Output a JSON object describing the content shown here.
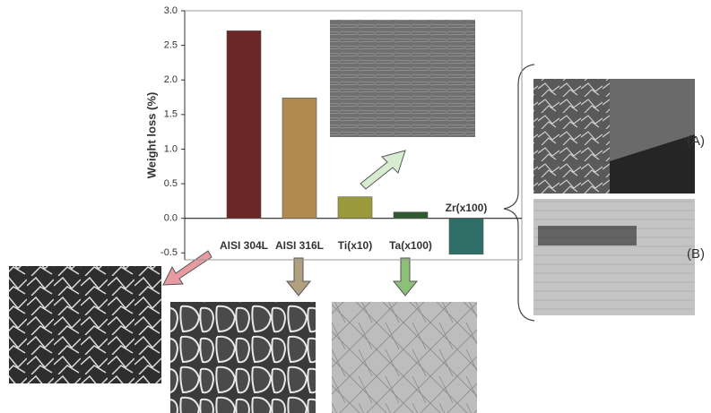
{
  "chart_data": {
    "type": "bar",
    "y_label": "Weight loss (%)",
    "categories": [
      "AISI 304L",
      "AISI 316L",
      "Ti(x10)",
      "Ta(x100)",
      "Zr(x100)"
    ],
    "values": [
      2.71,
      1.74,
      0.31,
      0.09,
      -0.52
    ],
    "colors": [
      "#6b2626",
      "#b08a4f",
      "#9a9a3c",
      "#2f5a2f",
      "#2e6e66"
    ],
    "ylim": [
      -0.6,
      3.0
    ],
    "yticks": [
      {
        "value": 3,
        "label": "3.0"
      },
      2.5,
      {
        "value": 2,
        "label": "2.0"
      },
      1.5,
      {
        "value": 1,
        "label": "1.0"
      },
      0.5,
      {
        "value": 0,
        "label": "0.0"
      },
      -0.5
    ],
    "annotations": [
      "(A)",
      "(B)"
    ]
  }
}
